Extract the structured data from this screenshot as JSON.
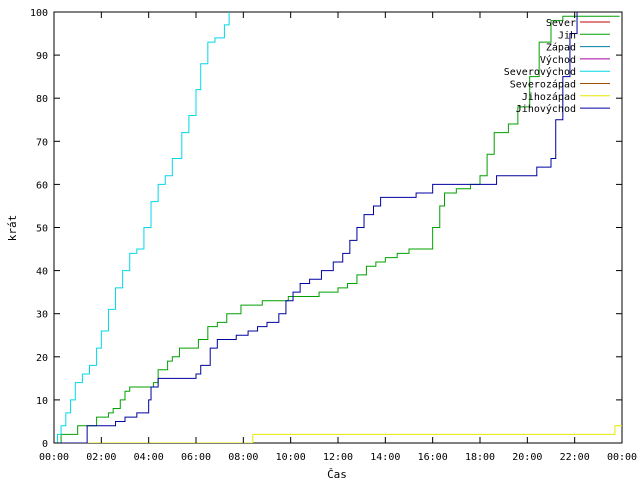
{
  "chart_data": {
    "type": "line",
    "title": "",
    "xlabel": "Čas",
    "ylabel": "krát",
    "ylim": [
      0,
      100
    ],
    "xlim": [
      0,
      24
    ],
    "x_unit": "hours",
    "y_ticks": [
      "0",
      "10",
      "20",
      "30",
      "40",
      "50",
      "60",
      "70",
      "80",
      "90",
      "100"
    ],
    "x_ticks": [
      "00:00",
      "02:00",
      "04:00",
      "06:00",
      "08:00",
      "10:00",
      "12:00",
      "14:00",
      "16:00",
      "18:00",
      "20:00",
      "22:00",
      "00:00"
    ],
    "legend_position": "top-right",
    "grid": false,
    "series": [
      {
        "name": "Sever",
        "color": "#c00000",
        "x": [],
        "y": []
      },
      {
        "name": "Jih",
        "color": "#00a000",
        "x": [
          0.0,
          0.3,
          0.3,
          1.0,
          1.0,
          1.8,
          1.8,
          2.3,
          2.5,
          2.8,
          3.0,
          3.2,
          3.8,
          4.2,
          4.4,
          4.8,
          5.0,
          5.3,
          5.7,
          6.1,
          6.5,
          6.9,
          7.3,
          7.9,
          8.3,
          8.8,
          9.5,
          9.9,
          10.5,
          11.2,
          11.5,
          12.0,
          12.4,
          12.8,
          13.2,
          13.6,
          14.0,
          14.5,
          15.0,
          15.8,
          16.0,
          16.3,
          16.5,
          17.0,
          17.6,
          18.0,
          18.3,
          18.6,
          19.2,
          19.6,
          20.1,
          20.5,
          21.0,
          21.5,
          22.0,
          22.5,
          23.0,
          23.9
        ],
        "y": [
          0,
          0,
          2,
          2,
          4,
          4,
          6,
          7,
          8,
          10,
          12,
          13,
          13,
          14,
          17,
          19,
          20,
          22,
          22,
          24,
          27,
          28,
          30,
          32,
          32,
          33,
          33,
          34,
          34,
          35,
          35,
          36,
          37,
          39,
          41,
          42,
          43,
          44,
          45,
          45,
          50,
          55,
          58,
          59,
          60,
          62,
          67,
          72,
          74,
          78,
          85,
          93,
          98,
          99,
          99,
          99,
          99,
          99
        ]
      },
      {
        "name": "Západ",
        "color": "#0080a0",
        "x": [],
        "y": []
      },
      {
        "name": "Východ",
        "color": "#a000a0",
        "x": [],
        "y": []
      },
      {
        "name": "Severovýchod",
        "color": "#00d8e8",
        "x": [
          0.0,
          0.15,
          0.3,
          0.5,
          0.7,
          0.9,
          1.2,
          1.5,
          1.8,
          2.0,
          2.3,
          2.6,
          2.9,
          3.2,
          3.5,
          3.8,
          4.1,
          4.4,
          4.7,
          5.0,
          5.4,
          5.7,
          6.0,
          6.2,
          6.5,
          6.8,
          7.0,
          7.2,
          7.4
        ],
        "y": [
          0,
          2,
          4,
          7,
          10,
          14,
          16,
          18,
          22,
          26,
          31,
          36,
          40,
          44,
          45,
          50,
          56,
          60,
          62,
          66,
          72,
          76,
          82,
          88,
          93,
          94,
          94,
          97,
          100
        ]
      },
      {
        "name": "Severozápad",
        "color": "#a05000",
        "x": [],
        "y": []
      },
      {
        "name": "Jihozápad",
        "color": "#e8e800",
        "x": [
          0.0,
          8.35,
          8.4,
          23.6,
          23.7,
          24.0
        ],
        "y": [
          0,
          0,
          2,
          2,
          4,
          4
        ]
      },
      {
        "name": "Jihovýchod",
        "color": "#0000a0",
        "x": [
          0.0,
          1.2,
          1.4,
          2.1,
          2.6,
          3.0,
          3.5,
          4.0,
          4.1,
          4.4,
          4.8,
          5.7,
          6.0,
          6.2,
          6.6,
          6.9,
          7.3,
          7.7,
          8.2,
          8.6,
          9.0,
          9.3,
          9.5,
          9.8,
          10.1,
          10.4,
          10.8,
          11.3,
          11.8,
          12.2,
          12.5,
          12.8,
          13.1,
          13.5,
          13.8,
          14.2,
          15.0,
          15.3,
          16.0,
          17.0,
          18.0,
          18.7,
          19.5,
          20.0,
          20.4,
          20.7,
          21.0,
          21.2,
          21.5,
          21.8,
          22.1
        ],
        "y": [
          0,
          0,
          4,
          4,
          5,
          6,
          7,
          10,
          13,
          15,
          15,
          15,
          16,
          18,
          22,
          24,
          24,
          25,
          26,
          27,
          28,
          28,
          30,
          33,
          35,
          37,
          38,
          40,
          42,
          44,
          47,
          50,
          53,
          55,
          57,
          57,
          57,
          58,
          60,
          60,
          60,
          62,
          62,
          62,
          64,
          64,
          66,
          75,
          85,
          95,
          100
        ]
      }
    ]
  }
}
